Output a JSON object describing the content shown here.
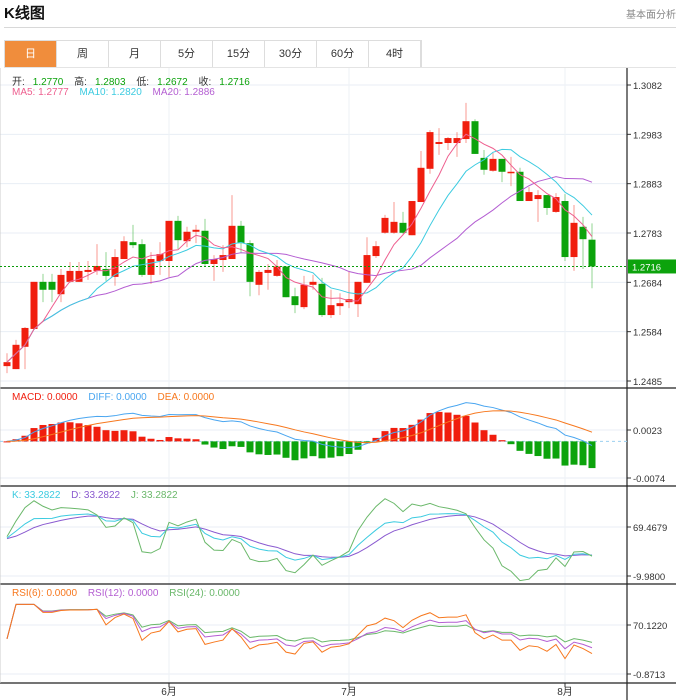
{
  "header": {
    "title": "K线图",
    "right_link": "基本面分析"
  },
  "tabs": [
    {
      "label": "日",
      "active": true
    },
    {
      "label": "周"
    },
    {
      "label": "月"
    },
    {
      "label": "5分"
    },
    {
      "label": "15分"
    },
    {
      "label": "30分"
    },
    {
      "label": "60分"
    },
    {
      "label": "4时"
    }
  ],
  "legend": {
    "open_label": "开:",
    "open": "1.2770",
    "high_label": "高:",
    "high": "1.2803",
    "low_label": "低:",
    "low": "1.2672",
    "close_label": "收:",
    "close": "1.2716",
    "ma5": "MA5: 1.2777",
    "ma10": "MA10: 1.2820",
    "ma20": "MA20: 1.2886",
    "macd": "MACD: 0.0000",
    "diff": "DIFF: 0.0000",
    "dea": "DEA: 0.0000",
    "k": "K: 33.2822",
    "d": "D: 33.2822",
    "j": "J: 33.2822",
    "rsi6": "RSI(6): 0.0000",
    "rsi12": "RSI(12): 0.0000",
    "rsi24": "RSI(24): 0.0000"
  },
  "colors": {
    "up": "#f01e0e",
    "down": "#0ca30c",
    "ma5": "#ee5f8f",
    "ma10": "#3ccbe0",
    "ma20": "#b45ed2",
    "diff": "#4aa6f0",
    "dea": "#f7781e",
    "accent": "#f08d3c"
  },
  "chart_data": {
    "type": "candlestick",
    "current_price": "1.2716",
    "price_ticks": [
      "1.3082",
      "1.2983",
      "1.2883",
      "1.2783",
      "1.2684",
      "1.2584",
      "1.2485"
    ],
    "price_range": [
      1.2485,
      1.3082
    ],
    "macd_ticks": [
      "0.0023",
      "-0.0074"
    ],
    "macd_range": [
      -0.0074,
      0.0023
    ],
    "kdj_ticks": [
      "69.4679",
      "-9.9800"
    ],
    "kdj_range": [
      -9.98,
      69.4679
    ],
    "rsi_ticks": [
      "70.1220",
      "-0.8713"
    ],
    "rsi_range": [
      -0.8713,
      70.122
    ],
    "x_labels": [
      {
        "label": "6月",
        "index": 18
      },
      {
        "label": "7月",
        "index": 38
      },
      {
        "label": "8月",
        "index": 62
      }
    ],
    "ohlc": [
      [
        1.2515,
        1.2541,
        1.2501,
        1.2523
      ],
      [
        1.2509,
        1.2568,
        1.2509,
        1.2558
      ],
      [
        1.2554,
        1.2594,
        1.2509,
        1.2592
      ],
      [
        1.259,
        1.2685,
        1.259,
        1.2685
      ],
      [
        1.2685,
        1.2701,
        1.2644,
        1.2669
      ],
      [
        1.2685,
        1.2701,
        1.2644,
        1.2669
      ],
      [
        1.266,
        1.2711,
        1.2644,
        1.2699
      ],
      [
        1.2685,
        1.2725,
        1.2683,
        1.2707
      ],
      [
        1.2685,
        1.2725,
        1.2685,
        1.2707
      ],
      [
        1.2705,
        1.2727,
        1.2689,
        1.2709
      ],
      [
        1.2707,
        1.2761,
        1.2699,
        1.2717
      ],
      [
        1.2711,
        1.2745,
        1.2687,
        1.2697
      ],
      [
        1.2695,
        1.2751,
        1.2677,
        1.2735
      ],
      [
        1.2731,
        1.2777,
        1.2731,
        1.2767
      ],
      [
        1.2765,
        1.28,
        1.2753,
        1.2759
      ],
      [
        1.2761,
        1.2771,
        1.2695,
        1.2699
      ],
      [
        1.2699,
        1.2745,
        1.2681,
        1.2731
      ],
      [
        1.2727,
        1.2765,
        1.2699,
        1.2741
      ],
      [
        1.2727,
        1.2808,
        1.2695,
        1.2808
      ],
      [
        1.2808,
        1.2818,
        1.2751,
        1.2769
      ],
      [
        1.2767,
        1.2796,
        1.2755,
        1.2786
      ],
      [
        1.2786,
        1.28,
        1.2763,
        1.279
      ],
      [
        1.2788,
        1.2812,
        1.2717,
        1.2721
      ],
      [
        1.2721,
        1.2739,
        1.2687,
        1.2731
      ],
      [
        1.2729,
        1.2759,
        1.2705,
        1.2739
      ],
      [
        1.2731,
        1.286,
        1.2731,
        1.2798
      ],
      [
        1.2798,
        1.2808,
        1.2743,
        1.2763
      ],
      [
        1.2763,
        1.2769,
        1.2656,
        1.2685
      ],
      [
        1.2679,
        1.2709,
        1.2658,
        1.2705
      ],
      [
        1.2703,
        1.2721,
        1.2669,
        1.2709
      ],
      [
        1.2697,
        1.2729,
        1.2695,
        1.2716
      ],
      [
        1.2716,
        1.2716,
        1.2654,
        1.2654
      ],
      [
        1.2656,
        1.2673,
        1.2622,
        1.2638
      ],
      [
        1.2634,
        1.2697,
        1.263,
        1.2679
      ],
      [
        1.2679,
        1.2699,
        1.2669,
        1.2685
      ],
      [
        1.2681,
        1.2693,
        1.2614,
        1.2618
      ],
      [
        1.2618,
        1.2669,
        1.2612,
        1.2638
      ],
      [
        1.2636,
        1.2662,
        1.2618,
        1.2642
      ],
      [
        1.2644,
        1.2705,
        1.2632,
        1.265
      ],
      [
        1.264,
        1.2685,
        1.2614,
        1.2685
      ],
      [
        1.2683,
        1.2775,
        1.2683,
        1.2739
      ],
      [
        1.2737,
        1.2767,
        1.2733,
        1.2757
      ],
      [
        1.2784,
        1.282,
        1.2782,
        1.2814
      ],
      [
        1.2784,
        1.2846,
        1.2782,
        1.2806
      ],
      [
        1.2804,
        1.2826,
        1.2782,
        1.2784
      ],
      [
        1.2779,
        1.2848,
        1.2779,
        1.2848
      ],
      [
        1.2846,
        1.2949,
        1.2846,
        1.2915
      ],
      [
        1.2913,
        1.2991,
        1.2903,
        1.2987
      ],
      [
        1.2963,
        1.2995,
        1.2941,
        1.2967
      ],
      [
        1.2965,
        1.2977,
        1.2951,
        1.2975
      ],
      [
        1.2965,
        1.2987,
        1.2937,
        1.2975
      ],
      [
        1.2973,
        1.3046,
        1.2965,
        1.3009
      ],
      [
        1.3009,
        1.3013,
        1.2943,
        1.2943
      ],
      [
        1.2935,
        1.2951,
        1.2901,
        1.2911
      ],
      [
        1.2909,
        1.2945,
        1.2907,
        1.2933
      ],
      [
        1.2933,
        1.2933,
        1.2886,
        1.2907
      ],
      [
        1.2905,
        1.2937,
        1.2878,
        1.2907
      ],
      [
        1.2907,
        1.2915,
        1.2848,
        1.2848
      ],
      [
        1.2848,
        1.2876,
        1.2848,
        1.2866
      ],
      [
        1.2852,
        1.287,
        1.2806,
        1.286
      ],
      [
        1.286,
        1.286,
        1.282,
        1.2834
      ],
      [
        1.2826,
        1.2864,
        1.2824,
        1.2856
      ],
      [
        1.2848,
        1.2862,
        1.2727,
        1.2735
      ],
      [
        1.2735,
        1.284,
        1.2707,
        1.2804
      ],
      [
        1.2796,
        1.2816,
        1.2711,
        1.2771
      ],
      [
        1.277,
        1.2803,
        1.2672,
        1.2716
      ]
    ]
  }
}
